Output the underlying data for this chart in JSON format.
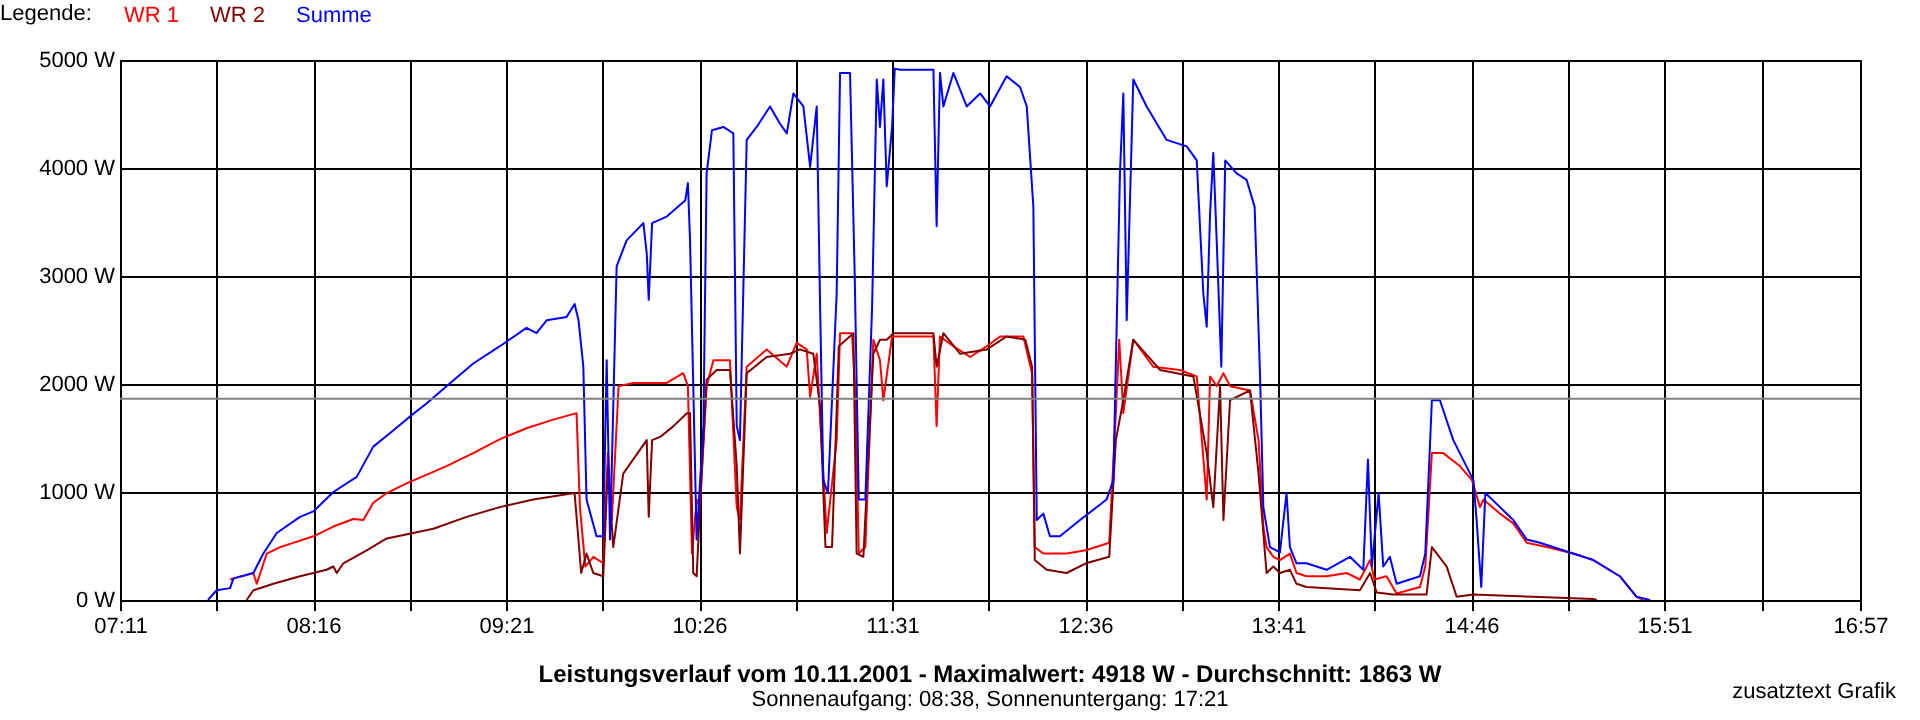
{
  "chart_data": {
    "type": "line",
    "title": "Leistungsverlauf vom 10.11.2001 - Maximalwert: 4918 W - Durchschnitt: 1863 W",
    "subtitle": "Sonnenaufgang: 08:38, Sonnenuntergang: 17:21",
    "annotations": [
      "zusatztext Grafik"
    ],
    "legend_title": "Legende:",
    "legend": "top left",
    "grid": true,
    "marker": "none",
    "line_style": "solid",
    "xlim": [
      7.1833,
      16.95
    ],
    "xticks": [
      {
        "value": 7.1833,
        "label": "07:11"
      },
      {
        "value": 7.725,
        "label": null
      },
      {
        "value": 8.2667,
        "label": "08:16"
      },
      {
        "value": 8.8083,
        "label": null
      },
      {
        "value": 9.35,
        "label": "09:21"
      },
      {
        "value": 9.8917,
        "label": null
      },
      {
        "value": 10.4333,
        "label": "10:26"
      },
      {
        "value": 10.975,
        "label": null
      },
      {
        "value": 11.5167,
        "label": "11:31"
      },
      {
        "value": 12.0583,
        "label": null
      },
      {
        "value": 12.6,
        "label": "12:36"
      },
      {
        "value": 13.1417,
        "label": null
      },
      {
        "value": 13.6833,
        "label": "13:41"
      },
      {
        "value": 14.225,
        "label": null
      },
      {
        "value": 14.7667,
        "label": "14:46"
      },
      {
        "value": 15.3083,
        "label": null
      },
      {
        "value": 15.85,
        "label": "15:51"
      },
      {
        "value": 16.4,
        "label": null
      },
      {
        "value": 16.95,
        "label": "16:57"
      }
    ],
    "ylim": [
      0,
      5000
    ],
    "yticks": [
      {
        "value": 0,
        "label": "0 W"
      },
      {
        "value": 1000,
        "label": "1000 W"
      },
      {
        "value": 2000,
        "label": "2000 W"
      },
      {
        "value": 3000,
        "label": "3000 W"
      },
      {
        "value": 4000,
        "label": "4000 W"
      },
      {
        "value": 5000,
        "label": "5000 W"
      }
    ],
    "ref_lines": [
      {
        "axis": "y",
        "value": 1863,
        "color": "#808080"
      }
    ],
    "series": [
      {
        "name": "WR 1",
        "color": "#ff0000",
        "x": [
          7.801,
          7.932,
          7.951,
          8.007,
          8.082,
          8.269,
          8.381,
          8.493,
          8.549,
          8.605,
          8.68,
          8.792,
          9.016,
          9.166,
          9.316,
          9.465,
          9.615,
          9.746,
          9.765,
          9.795,
          9.84,
          9.896,
          9.922,
          9.944,
          9.982,
          10.064,
          10.252,
          10.345,
          10.371,
          10.394,
          10.42,
          10.439,
          10.476,
          10.514,
          10.607,
          10.645,
          10.663,
          10.701,
          10.813,
          10.926,
          10.981,
          11.038,
          11.057,
          11.094,
          11.12,
          11.15,
          11.206,
          11.225,
          11.292,
          11.311,
          11.33,
          11.367,
          11.412,
          11.449,
          11.468,
          11.517,
          11.749,
          11.767,
          11.786,
          11.861,
          11.955,
          12.049,
          12.123,
          12.254,
          12.303,
          12.318,
          12.366,
          12.497,
          12.605,
          12.736,
          12.773,
          12.792,
          12.815,
          12.871,
          12.983,
          13.133,
          13.227,
          13.283,
          13.302,
          13.339,
          13.377,
          13.414,
          13.526,
          13.574,
          13.601,
          13.619,
          13.657,
          13.694,
          13.75,
          13.787,
          13.843,
          13.956,
          14.068,
          14.143,
          14.2,
          14.225,
          14.292,
          14.349,
          14.48,
          14.51,
          14.547,
          14.611,
          14.704,
          14.772,
          14.817,
          14.836,
          14.929,
          15.004,
          15.079,
          15.191,
          15.34,
          15.453,
          15.602,
          15.696,
          15.734
        ],
        "values": [
          190,
          250,
          150,
          430,
          490,
          590,
          680,
          750,
          740,
          900,
          990,
          1080,
          1240,
          1360,
          1490,
          1590,
          1670,
          1730,
          860,
          310,
          400,
          340,
          1360,
          740,
          1980,
          2010,
          2010,
          2100,
          1980,
          430,
          930,
          860,
          1980,
          2220,
          2220,
          860,
          740,
          2160,
          2320,
          2160,
          2380,
          2320,
          1880,
          2280,
          1480,
          620,
          1480,
          2470,
          2470,
          1910,
          430,
          490,
          2410,
          2220,
          1850,
          2440,
          2440,
          1610,
          2440,
          2350,
          2250,
          2350,
          2440,
          2440,
          2100,
          490,
          430,
          430,
          460,
          530,
          1730,
          2410,
          1730,
          2410,
          2160,
          2130,
          2070,
          930,
          2070,
          1980,
          2100,
          1980,
          1940,
          1480,
          680,
          490,
          400,
          370,
          430,
          250,
          220,
          220,
          250,
          190,
          370,
          190,
          220,
          60,
          120,
          310,
          1360,
          1360,
          1240,
          1110,
          860,
          930,
          800,
          710,
          530,
          490,
          430,
          370,
          220,
          30,
          0
        ]
      },
      {
        "name": "WR 2",
        "color": "#800000",
        "x": [
          7.894,
          7.932,
          8.044,
          8.194,
          8.343,
          8.381,
          8.4,
          8.437,
          8.568,
          8.68,
          8.829,
          8.942,
          9.129,
          9.316,
          9.503,
          9.69,
          9.735,
          9.772,
          9.802,
          9.84,
          9.896,
          9.922,
          9.952,
          10.008,
          10.14,
          10.151,
          10.17,
          10.215,
          10.29,
          10.365,
          10.383,
          10.401,
          10.42,
          10.446,
          10.476,
          10.532,
          10.607,
          10.645,
          10.663,
          10.701,
          10.813,
          10.944,
          11.001,
          11.075,
          11.113,
          11.143,
          11.18,
          11.218,
          11.3,
          11.318,
          11.356,
          11.412,
          11.449,
          11.487,
          11.525,
          11.749,
          11.767,
          11.805,
          11.899,
          12.049,
          12.16,
          12.265,
          12.303,
          12.318,
          12.385,
          12.497,
          12.605,
          12.736,
          12.773,
          12.815,
          12.871,
          13.021,
          13.208,
          13.283,
          13.32,
          13.358,
          13.377,
          13.414,
          13.526,
          13.574,
          13.619,
          13.657,
          13.694,
          13.75,
          13.787,
          13.843,
          14.143,
          14.2,
          14.237,
          14.33,
          14.517,
          14.547,
          14.63,
          14.686,
          14.78,
          15.116,
          15.453,
          15.472
        ],
        "values": [
          0,
          90,
          150,
          220,
          280,
          310,
          250,
          340,
          460,
          570,
          620,
          660,
          770,
          860,
          930,
          980,
          990,
          250,
          430,
          250,
          220,
          1240,
          490,
          1170,
          1480,
          770,
          1480,
          1510,
          1610,
          1730,
          1730,
          250,
          220,
          1110,
          2040,
          2130,
          2130,
          1240,
          430,
          2100,
          2250,
          2280,
          2320,
          2280,
          1790,
          490,
          490,
          2350,
          2470,
          430,
          400,
          2280,
          2410,
          2410,
          2470,
          2470,
          2160,
          2470,
          2280,
          2320,
          2440,
          2410,
          2160,
          370,
          280,
          250,
          340,
          400,
          1480,
          1850,
          2410,
          2130,
          2070,
          1360,
          860,
          1980,
          740,
          1850,
          1940,
          1170,
          250,
          310,
          250,
          280,
          150,
          120,
          90,
          250,
          70,
          50,
          50,
          490,
          310,
          30,
          50,
          30,
          10,
          0
        ]
      },
      {
        "name": "Summe",
        "color": "#0000ff",
        "x": [
          7.677,
          7.726,
          7.801,
          7.82,
          7.932,
          7.988,
          8.063,
          8.194,
          8.269,
          8.381,
          8.512,
          8.605,
          8.717,
          8.811,
          8.904,
          9.016,
          9.166,
          9.316,
          9.465,
          9.521,
          9.578,
          9.69,
          9.735,
          9.757,
          9.784,
          9.802,
          9.858,
          9.896,
          9.915,
          9.934,
          9.971,
          10.027,
          10.121,
          10.14,
          10.151,
          10.17,
          10.252,
          10.356,
          10.371,
          10.383,
          10.42,
          10.458,
          10.476,
          10.506,
          10.57,
          10.626,
          10.645,
          10.663,
          10.701,
          10.757,
          10.832,
          10.888,
          10.926,
          10.963,
          11.019,
          11.057,
          11.094,
          11.113,
          11.131,
          11.157,
          11.206,
          11.225,
          11.281,
          11.307,
          11.33,
          11.367,
          11.405,
          11.431,
          11.449,
          11.468,
          11.487,
          11.517,
          11.532,
          11.562,
          11.749,
          11.767,
          11.786,
          11.805,
          11.861,
          11.936,
          12.011,
          12.067,
          12.16,
          12.235,
          12.273,
          12.31,
          12.329,
          12.366,
          12.403,
          12.459,
          12.572,
          12.721,
          12.759,
          12.796,
          12.815,
          12.834,
          12.871,
          12.946,
          13.058,
          13.171,
          13.227,
          13.264,
          13.283,
          13.302,
          13.32,
          13.339,
          13.365,
          13.387,
          13.451,
          13.507,
          13.552,
          13.582,
          13.601,
          13.638,
          13.694,
          13.731,
          13.75,
          13.787,
          13.843,
          13.956,
          14.087,
          14.162,
          14.188,
          14.21,
          14.248,
          14.274,
          14.311,
          14.349,
          14.48,
          14.51,
          14.547,
          14.592,
          14.667,
          14.78,
          14.798,
          14.824,
          14.847,
          14.929,
          15.004,
          15.079,
          15.153,
          15.34,
          15.453,
          15.602,
          15.696,
          15.771
        ],
        "values": [
          0,
          90,
          110,
          200,
          250,
          430,
          620,
          770,
          820,
          1000,
          1140,
          1420,
          1570,
          1700,
          1820,
          1980,
          2190,
          2350,
          2520,
          2470,
          2590,
          2620,
          2740,
          2590,
          2160,
          930,
          590,
          590,
          2220,
          560,
          3090,
          3330,
          3490,
          3210,
          2780,
          3490,
          3550,
          3700,
          3860,
          3330,
          560,
          1610,
          3950,
          4350,
          4380,
          4320,
          1610,
          1480,
          4260,
          4380,
          4570,
          4410,
          4320,
          4690,
          4570,
          4010,
          4570,
          2720,
          1110,
          990,
          2840,
          4880,
          4880,
          3030,
          930,
          930,
          2720,
          4820,
          4380,
          4820,
          3830,
          4380,
          4920,
          4910,
          4910,
          3460,
          4880,
          4570,
          4880,
          4570,
          4690,
          4570,
          4850,
          4750,
          4570,
          3640,
          740,
          800,
          590,
          590,
          740,
          930,
          1110,
          3950,
          4690,
          2590,
          4820,
          4570,
          4260,
          4200,
          4070,
          2840,
          2530,
          3580,
          4140,
          3330,
          2160,
          4070,
          3950,
          3890,
          3640,
          2100,
          860,
          490,
          440,
          990,
          490,
          340,
          340,
          280,
          400,
          280,
          1300,
          310,
          990,
          310,
          400,
          150,
          220,
          430,
          1850,
          1850,
          1480,
          1110,
          740,
          120,
          990,
          860,
          740,
          560,
          530,
          430,
          370,
          220,
          30,
          0
        ]
      }
    ]
  }
}
